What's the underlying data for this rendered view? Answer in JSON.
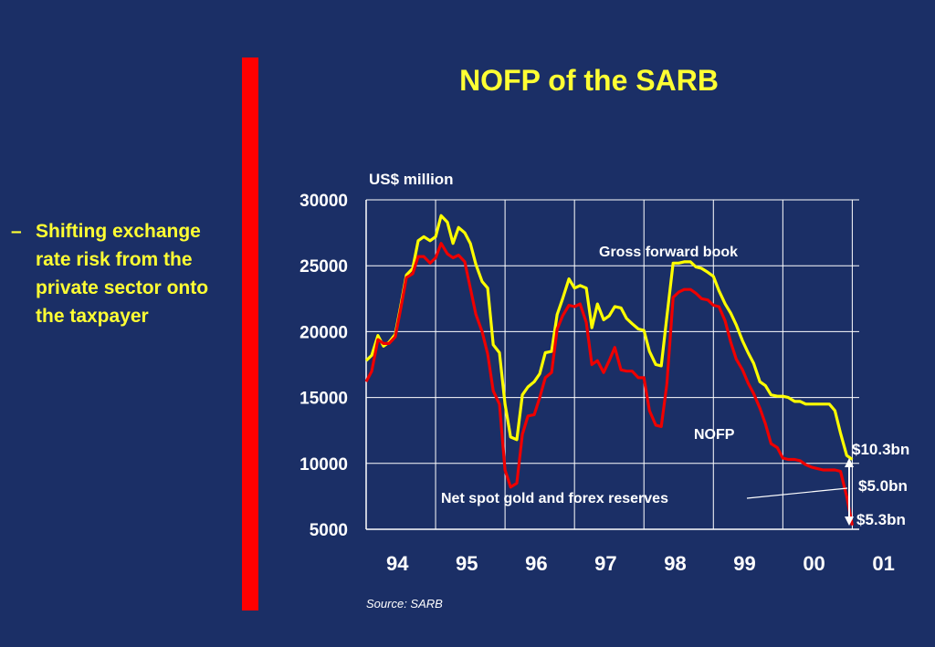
{
  "bullet": {
    "dash": "–",
    "text": "Shifting exchange rate risk from the private sector onto the taxpayer"
  },
  "source": "Source: SARB",
  "colors": {
    "background": "#1b2f66",
    "accent_bar": "#ff0000",
    "gross_line": "#ffff00",
    "nofp_line": "#ee0000",
    "grid": "#ffffff"
  },
  "chart_data": {
    "type": "line",
    "title": "NOFP of the SARB",
    "ylabel": "US$ million",
    "xlabel": "",
    "ylim": [
      5000,
      30000
    ],
    "yticks": [
      5000,
      10000,
      15000,
      20000,
      25000,
      30000
    ],
    "xlim": [
      94,
      101.1
    ],
    "xtick_labels": [
      "94",
      "95",
      "96",
      "97",
      "98",
      "99",
      "00",
      "01"
    ],
    "grid": true,
    "series": [
      {
        "name": "Gross forward book",
        "color": "#ffff00",
        "x": [
          94.0,
          94.08,
          94.17,
          94.25,
          94.33,
          94.42,
          94.5,
          94.58,
          94.67,
          94.75,
          94.83,
          94.92,
          95.0,
          95.08,
          95.17,
          95.25,
          95.33,
          95.42,
          95.5,
          95.58,
          95.67,
          95.75,
          95.83,
          95.92,
          96.0,
          96.08,
          96.17,
          96.25,
          96.33,
          96.42,
          96.5,
          96.58,
          96.67,
          96.75,
          96.83,
          96.92,
          97.0,
          97.08,
          97.17,
          97.25,
          97.33,
          97.42,
          97.5,
          97.58,
          97.67,
          97.75,
          97.83,
          97.92,
          98.0,
          98.08,
          98.17,
          98.25,
          98.33,
          98.42,
          98.5,
          98.58,
          98.67,
          98.75,
          98.83,
          98.92,
          99.0,
          99.08,
          99.17,
          99.25,
          99.33,
          99.42,
          99.5,
          99.58,
          99.67,
          99.75,
          99.83,
          99.92,
          100.0,
          100.08,
          100.17,
          100.25,
          100.33,
          100.42,
          100.5,
          100.58,
          100.67,
          100.75,
          100.83,
          100.92,
          101.0
        ],
        "values": [
          17800,
          18200,
          19700,
          18900,
          19200,
          19800,
          22000,
          24300,
          24800,
          26900,
          27200,
          26900,
          27200,
          28800,
          28300,
          26700,
          27900,
          27500,
          26700,
          25100,
          23800,
          23300,
          19000,
          18400,
          14500,
          12000,
          11800,
          15200,
          15800,
          16200,
          16800,
          18400,
          18500,
          21300,
          22500,
          24000,
          23300,
          23500,
          23300,
          20300,
          22100,
          20900,
          21200,
          21900,
          21800,
          21000,
          20600,
          20200,
          20100,
          18500,
          17500,
          17400,
          21100,
          25200,
          25200,
          25300,
          25300,
          24900,
          24800,
          24500,
          24200,
          23100,
          22100,
          21400,
          20500,
          19300,
          18400,
          17600,
          16200,
          15900,
          15200,
          15100,
          15100,
          15000,
          14700,
          14700,
          14500,
          14500,
          14500,
          14500,
          14500,
          14000,
          12300,
          10600,
          10300
        ]
      },
      {
        "name": "NOFP",
        "color": "#ee0000",
        "x": [
          94.0,
          94.08,
          94.17,
          94.25,
          94.33,
          94.42,
          94.5,
          94.58,
          94.67,
          94.75,
          94.83,
          94.92,
          95.0,
          95.08,
          95.17,
          95.25,
          95.33,
          95.42,
          95.5,
          95.58,
          95.67,
          95.75,
          95.83,
          95.92,
          96.0,
          96.08,
          96.17,
          96.25,
          96.33,
          96.42,
          96.5,
          96.58,
          96.67,
          96.75,
          96.83,
          96.92,
          97.0,
          97.08,
          97.17,
          97.25,
          97.33,
          97.42,
          97.5,
          97.58,
          97.67,
          97.75,
          97.83,
          97.92,
          98.0,
          98.08,
          98.17,
          98.25,
          98.33,
          98.42,
          98.5,
          98.58,
          98.67,
          98.75,
          98.83,
          98.92,
          99.0,
          99.08,
          99.17,
          99.25,
          99.33,
          99.42,
          99.5,
          99.58,
          99.67,
          99.75,
          99.83,
          99.92,
          100.0,
          100.08,
          100.17,
          100.25,
          100.33,
          100.42,
          100.5,
          100.58,
          100.67,
          100.75,
          100.83,
          100.92,
          101.0
        ],
        "values": [
          16200,
          17000,
          19400,
          19100,
          19100,
          19600,
          21800,
          24100,
          24400,
          25700,
          25700,
          25200,
          25600,
          26700,
          25900,
          25600,
          25800,
          25300,
          23300,
          21300,
          20000,
          18300,
          15500,
          14500,
          9500,
          8200,
          8500,
          12200,
          13600,
          13700,
          15000,
          16500,
          16900,
          20200,
          21200,
          22000,
          21900,
          22100,
          20700,
          17500,
          17800,
          16900,
          17800,
          18800,
          17100,
          17000,
          17000,
          16500,
          16500,
          14000,
          12900,
          12800,
          16000,
          22600,
          23000,
          23200,
          23200,
          22900,
          22500,
          22400,
          22000,
          21900,
          20800,
          19200,
          17900,
          17100,
          16100,
          15300,
          14200,
          13000,
          11500,
          11200,
          10400,
          10300,
          10300,
          10200,
          9900,
          9700,
          9600,
          9500,
          9500,
          9500,
          9400,
          7500,
          5300
        ]
      }
    ],
    "annotations": {
      "gross_label": "Gross forward book",
      "nofp_label": "NOFP",
      "reserves_label": "Net spot gold and forex reserves",
      "top_value": "$10.3bn",
      "gap_value": "$5.0bn",
      "bottom_value": "$5.3bn"
    }
  }
}
